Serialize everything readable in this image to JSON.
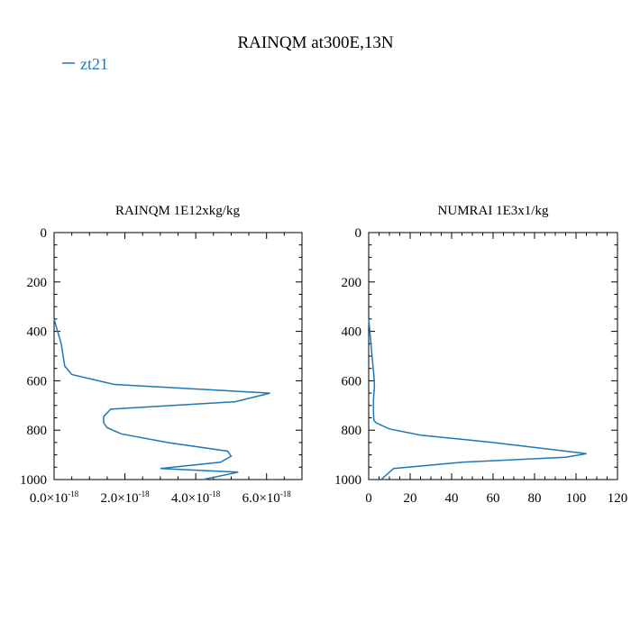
{
  "figure_title": "RAINQM at300E,13N",
  "legend": {
    "entries": [
      {
        "label": "zt21",
        "color": "#1f77b4"
      }
    ]
  },
  "chart_data": [
    {
      "type": "line",
      "title": "RAINQM  1E12xkg/kg",
      "xlabel": "",
      "ylabel": "",
      "orientation": "vertical-profile",
      "xlim": [
        0,
        7e-18
      ],
      "ylim": [
        1000,
        0
      ],
      "x_ticks": [
        {
          "mantissa": "0.0",
          "base": "×10",
          "exp": "-18"
        },
        {
          "mantissa": "2.0",
          "base": "×10",
          "exp": "-18"
        },
        {
          "mantissa": "4.0",
          "base": "×10",
          "exp": "-18"
        },
        {
          "mantissa": "6.0",
          "base": "×10",
          "exp": "-18"
        }
      ],
      "x_tick_values": [
        0,
        2e-18,
        4e-18,
        6e-18
      ],
      "y_ticks": [
        "0",
        "200",
        "400",
        "600",
        "800",
        "1000"
      ],
      "y_tick_values": [
        0,
        200,
        400,
        600,
        800,
        1000
      ],
      "series": [
        {
          "name": "zt21",
          "color": "#1f77b4",
          "x": [
            0,
            1e-19,
            2e-19,
            3e-19,
            5e-19,
            1.7e-18,
            6.1e-18,
            5.1e-18,
            1.6e-18,
            1.4e-18,
            1.4e-18,
            1.5e-18,
            1.9e-18,
            3.2e-18,
            4.9e-18,
            5e-18,
            4.7e-18,
            3e-18,
            5.2e-18,
            4.2e-18
          ],
          "y": [
            350,
            400,
            450,
            540,
            575,
            615,
            650,
            685,
            715,
            745,
            770,
            790,
            815,
            850,
            885,
            905,
            930,
            955,
            970,
            1000
          ]
        }
      ]
    },
    {
      "type": "line",
      "title": "NUMRAI  1E3x1/kg",
      "xlabel": "",
      "ylabel": "",
      "orientation": "vertical-profile",
      "xlim": [
        0,
        120
      ],
      "ylim": [
        1000,
        0
      ],
      "x_ticks": [
        "0",
        "20",
        "40",
        "60",
        "80",
        "100",
        "120"
      ],
      "x_tick_values": [
        0,
        20,
        40,
        60,
        80,
        100,
        120
      ],
      "y_ticks": [
        "0",
        "200",
        "400",
        "600",
        "800",
        "1000"
      ],
      "y_tick_values": [
        0,
        200,
        400,
        600,
        800,
        1000
      ],
      "series": [
        {
          "name": "zt21",
          "color": "#1f77b4",
          "x": [
            0,
            0.8,
            1.6,
            2.5,
            2.8,
            2.3,
            2.3,
            2.5,
            3.5,
            10,
            25,
            60,
            105,
            95,
            45,
            12,
            10,
            8,
            6
          ],
          "y": [
            350,
            420,
            500,
            580,
            620,
            680,
            730,
            760,
            770,
            795,
            820,
            850,
            895,
            910,
            930,
            955,
            970,
            985,
            1000
          ]
        }
      ]
    }
  ]
}
